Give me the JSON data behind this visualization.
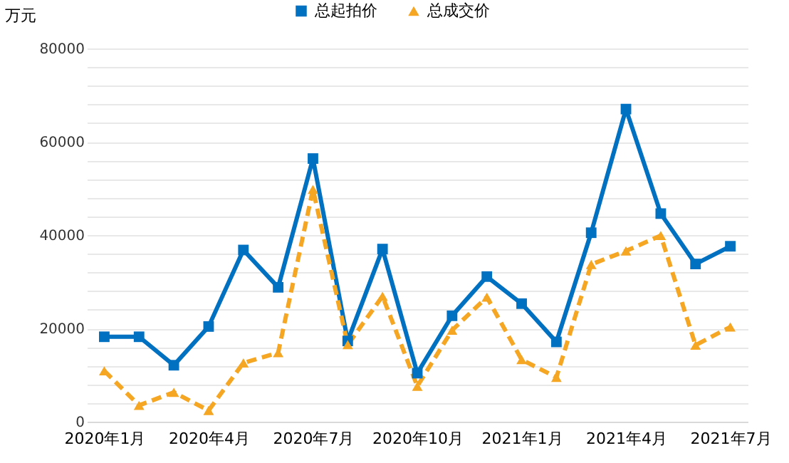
{
  "chart_data": {
    "type": "line",
    "ylabel": "万元",
    "categories": [
      "2020年1月",
      null,
      null,
      "2020年4月",
      null,
      null,
      "2020年7月",
      null,
      null,
      "2020年10月",
      null,
      null,
      "2021年1月",
      null,
      null,
      "2021年4月",
      null,
      null,
      "2021年7月"
    ],
    "series": [
      {
        "name": "总起拍价",
        "color": "#0070c0",
        "marker": "square",
        "line_style": "solid",
        "values": [
          18200,
          18200,
          12100,
          20400,
          36800,
          28800,
          56400,
          17300,
          37000,
          10400,
          22700,
          31100,
          25300,
          17100,
          40500,
          67000,
          44600,
          33800,
          37600
        ]
      },
      {
        "name": "总成交价",
        "color": "#f5a623",
        "marker": "triangle",
        "line_style": "dashed",
        "values": [
          10900,
          3500,
          6300,
          2400,
          12600,
          14800,
          49800,
          16500,
          26900,
          7600,
          19600,
          26700,
          13300,
          9500,
          33700,
          36600,
          39900,
          16400,
          20300
        ]
      }
    ],
    "ylim": [
      0,
      80000
    ],
    "yticks": [
      0,
      {
        "value": 4000,
        "label": null
      },
      {
        "value": 8000,
        "label": null
      },
      {
        "value": 12000,
        "label": null
      },
      {
        "value": 16000,
        "label": null
      },
      20000,
      {
        "value": 24000,
        "label": null
      },
      {
        "value": 28000,
        "label": null
      },
      {
        "value": 32000,
        "label": null
      },
      {
        "value": 36000,
        "label": null
      },
      40000,
      {
        "value": 44000,
        "label": null
      },
      {
        "value": 48000,
        "label": null
      },
      {
        "value": 52000,
        "label": null
      },
      {
        "value": 56000,
        "label": null
      },
      60000,
      {
        "value": 64000,
        "label": null
      },
      {
        "value": 68000,
        "label": null
      },
      {
        "value": 72000,
        "label": null
      },
      {
        "value": 76000,
        "label": null
      },
      80000
    ],
    "grid": "y",
    "legend": "top"
  }
}
